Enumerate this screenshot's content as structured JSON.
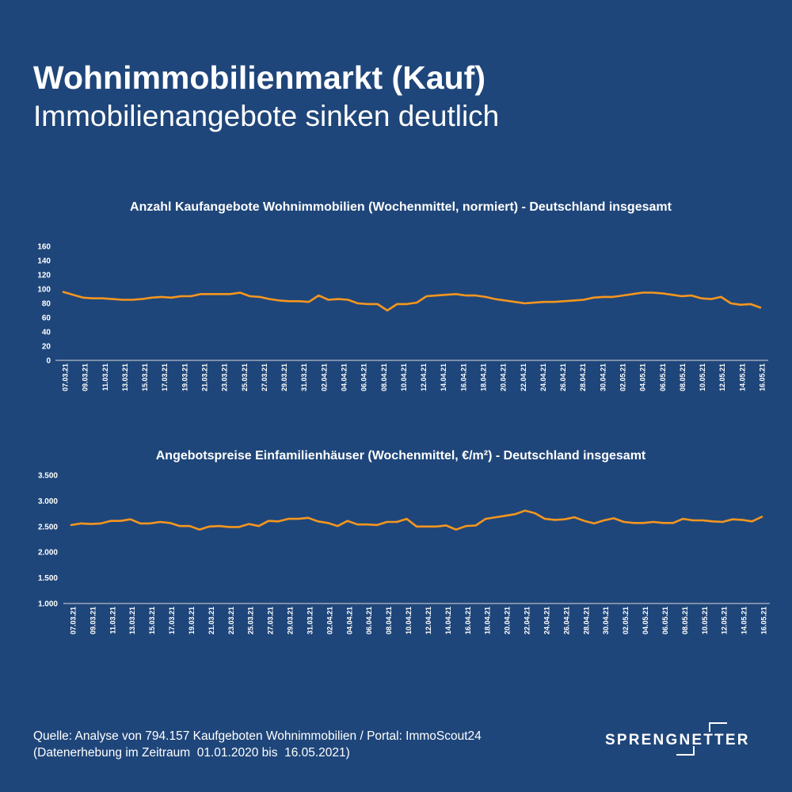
{
  "header": {
    "title": "Wohnimmobilienmarkt (Kauf)",
    "subtitle": "Immobilienangebote sinken deutlich"
  },
  "colors": {
    "background": "#1f467a",
    "line": "#f5961e",
    "text": "#ffffff"
  },
  "chart_data": [
    {
      "type": "line",
      "title": "Anzahl Kaufangebote Wohnimmobilien (Wochenmittel, normiert) - Deutschland insgesamt",
      "ylim": [
        0,
        160
      ],
      "yticks": [
        "0",
        "20",
        "40",
        "60",
        "80",
        "100",
        "120",
        "140",
        "160"
      ],
      "ytick_values": [
        0,
        20,
        40,
        60,
        80,
        100,
        120,
        140,
        160
      ],
      "xtick_labels": [
        "07.03.21",
        "09.03.21",
        "11.03.21",
        "13.03.21",
        "15.03.21",
        "17.03.21",
        "19.03.21",
        "21.03.21",
        "23.03.21",
        "25.03.21",
        "27.03.21",
        "29.03.21",
        "31.03.21",
        "02.04.21",
        "04.04.21",
        "06.04.21",
        "08.04.21",
        "10.04.21",
        "12.04.21",
        "14.04.21",
        "16.04.21",
        "18.04.21",
        "20.04.21",
        "22.04.21",
        "24.04.21",
        "26.04.21",
        "28.04.21",
        "30.04.21",
        "02.05.21",
        "04.05.21",
        "06.05.21",
        "08.05.21",
        "10.05.21",
        "12.05.21",
        "14.05.21",
        "16.05.21"
      ],
      "grid": false,
      "series": [
        {
          "values": [
            96,
            92,
            88,
            87,
            87,
            86,
            85,
            85,
            86,
            88,
            89,
            88,
            90,
            90,
            93,
            93,
            93,
            93,
            95,
            90,
            89,
            86,
            84,
            83,
            83,
            82,
            91,
            85,
            86,
            85,
            80,
            79,
            79,
            70,
            79,
            79,
            81,
            90,
            91,
            92,
            93,
            91,
            91,
            89,
            86,
            84,
            82,
            80,
            81,
            82,
            82,
            83,
            84,
            85,
            88,
            89,
            89,
            91,
            93,
            95,
            95,
            94,
            92,
            90,
            91,
            87,
            86,
            89,
            80,
            78,
            79,
            74
          ]
        }
      ]
    },
    {
      "type": "line",
      "title": "Angebotspreise Einfamilienhäuser (Wochenmittel, €/m²) - Deutschland insgesamt",
      "ylim": [
        1000,
        3500
      ],
      "yticks": [
        "1.000",
        "1.500",
        "2.000",
        "2.500",
        "3.000",
        "3.500"
      ],
      "ytick_values": [
        1000,
        1500,
        2000,
        2500,
        3000,
        3500
      ],
      "xtick_labels": [
        "07.03.21",
        "09.03.21",
        "11.03.21",
        "13.03.21",
        "15.03.21",
        "17.03.21",
        "19.03.21",
        "21.03.21",
        "23.03.21",
        "25.03.21",
        "27.03.21",
        "29.03.21",
        "31.03.21",
        "02.04.21",
        "04.04.21",
        "06.04.21",
        "08.04.21",
        "10.04.21",
        "12.04.21",
        "14.04.21",
        "16.04.21",
        "18.04.21",
        "20.04.21",
        "22.04.21",
        "24.04.21",
        "26.04.21",
        "28.04.21",
        "30.04.21",
        "02.05.21",
        "04.05.21",
        "06.05.21",
        "08.05.21",
        "10.05.21",
        "12.05.21",
        "14.05.21",
        "16.05.21"
      ],
      "grid": false,
      "series": [
        {
          "values": [
            2530,
            2560,
            2550,
            2560,
            2610,
            2610,
            2640,
            2560,
            2560,
            2590,
            2570,
            2510,
            2510,
            2440,
            2500,
            2510,
            2490,
            2490,
            2550,
            2510,
            2610,
            2600,
            2650,
            2650,
            2670,
            2600,
            2570,
            2510,
            2610,
            2540,
            2540,
            2530,
            2590,
            2590,
            2650,
            2500,
            2500,
            2500,
            2520,
            2440,
            2510,
            2520,
            2650,
            2680,
            2710,
            2740,
            2810,
            2760,
            2650,
            2630,
            2640,
            2680,
            2610,
            2560,
            2620,
            2660,
            2590,
            2570,
            2570,
            2590,
            2570,
            2570,
            2650,
            2620,
            2620,
            2600,
            2590,
            2640,
            2630,
            2600,
            2690
          ]
        }
      ]
    }
  ],
  "footer": {
    "line1": "Quelle: Analyse von 794.157 Kaufgeboten Wohnimmobilien / Portal: ImmoScout24",
    "line2": "(Datenerhebung im Zeitraum  01.01.2020 bis  16.05.2021)"
  },
  "logo": {
    "text": "SPRENGNETTER",
    "icon": "sprengnetter-bracket-logo-icon"
  }
}
